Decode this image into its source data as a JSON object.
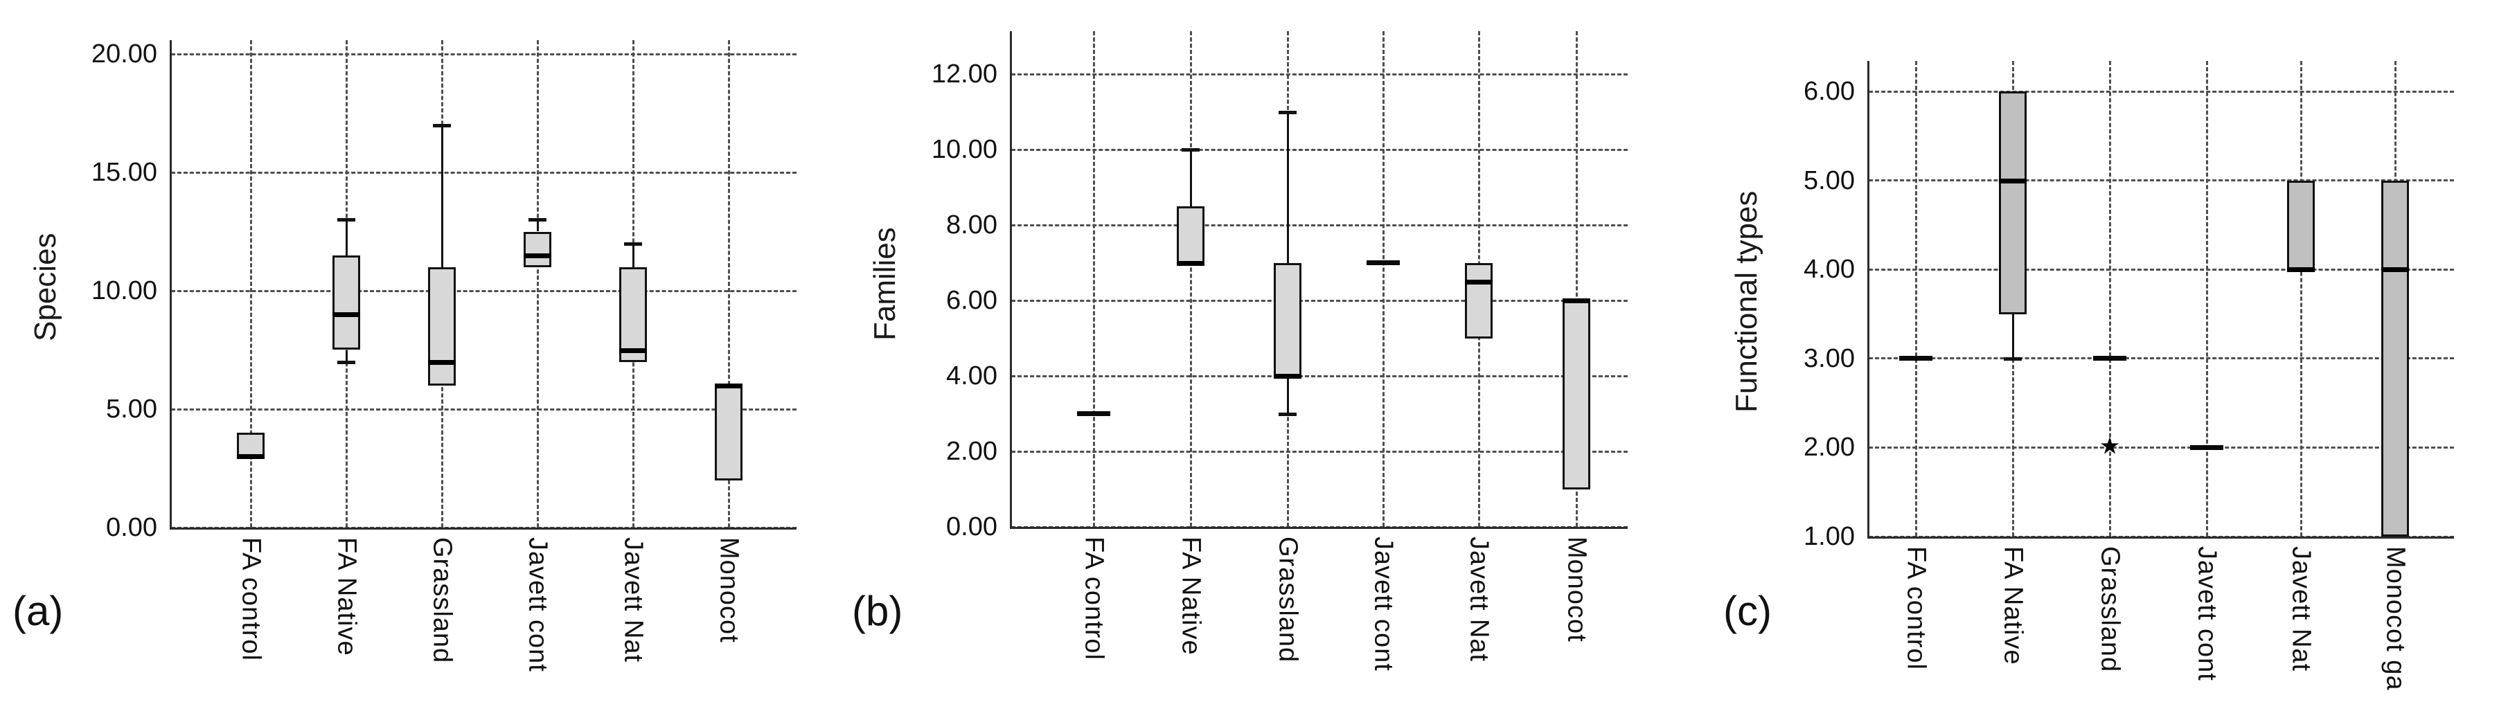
{
  "figure": {
    "background": "#ffffff",
    "colors": {
      "box_border": "#121212",
      "median": "#000000",
      "gridline": "#4f4f4f",
      "axis": "#2b2b2b",
      "text": "#111111"
    }
  },
  "chart_data": [
    {
      "type": "boxplot",
      "panel_id": "a",
      "panel_label": "(a)",
      "ylabel": "Species",
      "ylim": [
        0,
        20
      ],
      "yticks": [
        0,
        5,
        10,
        15,
        20
      ],
      "ytick_labels": [
        "0.00",
        "5.00",
        "10.00",
        "15.00",
        "20.00"
      ],
      "grid": "dashed",
      "legend": "none",
      "box_fill": "#d8d8d8",
      "categories": [
        "FA control",
        "FA Native",
        "Grassland",
        "Javett cont",
        "Javett Nat",
        "Monocot"
      ],
      "boxes": [
        {
          "category": "FA control",
          "q1": 3,
          "median": 3,
          "q3": 4,
          "whisker_low": null,
          "whisker_high": null,
          "outliers": []
        },
        {
          "category": "FA Native",
          "q1": 7.5,
          "median": 9,
          "q3": 11.5,
          "whisker_low": 7,
          "whisker_high": 13,
          "outliers": []
        },
        {
          "category": "Grassland",
          "q1": 6,
          "median": 7,
          "q3": 11,
          "whisker_low": null,
          "whisker_high": 17,
          "outliers": []
        },
        {
          "category": "Javett cont",
          "q1": 11,
          "median": 11.5,
          "q3": 12.5,
          "whisker_low": null,
          "whisker_high": 13,
          "outliers": []
        },
        {
          "category": "Javett Nat",
          "q1": 7,
          "median": 7.5,
          "q3": 11,
          "whisker_low": null,
          "whisker_high": 12,
          "outliers": []
        },
        {
          "category": "Monocot",
          "q1": 2,
          "median": 6,
          "q3": 6,
          "whisker_low": null,
          "whisker_high": null,
          "outliers": []
        }
      ]
    },
    {
      "type": "boxplot",
      "panel_id": "b",
      "panel_label": "(b)",
      "ylabel": "Families",
      "ylim": [
        0,
        12
      ],
      "yticks": [
        0,
        2,
        4,
        6,
        8,
        10,
        12
      ],
      "ytick_labels": [
        "0.00",
        "2.00",
        "4.00",
        "6.00",
        "8.00",
        "10.00",
        "12.00"
      ],
      "grid": "dashed",
      "legend": "none",
      "box_fill": "#d8d8d8",
      "categories": [
        "FA control",
        "FA Native",
        "Grassland",
        "Javett cont",
        "Javett Nat",
        "Monocot"
      ],
      "boxes": [
        {
          "category": "FA control",
          "q1": null,
          "median": 3,
          "q3": null,
          "whisker_low": null,
          "whisker_high": null,
          "outliers": []
        },
        {
          "category": "FA Native",
          "q1": 7,
          "median": 7,
          "q3": 8.5,
          "whisker_low": null,
          "whisker_high": 10,
          "outliers": []
        },
        {
          "category": "Grassland",
          "q1": 4,
          "median": 4,
          "q3": 7,
          "whisker_low": 3,
          "whisker_high": 11,
          "outliers": []
        },
        {
          "category": "Javett cont",
          "q1": null,
          "median": 7,
          "q3": null,
          "whisker_low": null,
          "whisker_high": null,
          "outliers": []
        },
        {
          "category": "Javett Nat",
          "q1": 5,
          "median": 6.5,
          "q3": 7,
          "whisker_low": null,
          "whisker_high": null,
          "outliers": []
        },
        {
          "category": "Monocot",
          "q1": 1,
          "median": 6,
          "q3": 6,
          "whisker_low": null,
          "whisker_high": null,
          "outliers": []
        }
      ]
    },
    {
      "type": "boxplot",
      "panel_id": "c",
      "panel_label": "(c)",
      "ylabel": "Functional types",
      "ylim": [
        1,
        6
      ],
      "yticks": [
        1,
        2,
        3,
        4,
        5,
        6
      ],
      "ytick_labels": [
        "1.00",
        "2.00",
        "3.00",
        "4.00",
        "5.00",
        "6.00"
      ],
      "grid": "dashed",
      "legend": "none",
      "box_fill": "#c0c0c0",
      "outlier_marker": "★",
      "categories": [
        "FA control",
        "FA Native",
        "Grassland",
        "Javett cont",
        "Javett Nat",
        "Monocot ga"
      ],
      "boxes": [
        {
          "category": "FA control",
          "q1": null,
          "median": 3,
          "q3": null,
          "whisker_low": null,
          "whisker_high": null,
          "outliers": []
        },
        {
          "category": "FA Native",
          "q1": 3.5,
          "median": 5,
          "q3": 6,
          "whisker_low": 3,
          "whisker_high": null,
          "outliers": []
        },
        {
          "category": "Grassland",
          "q1": null,
          "median": 3,
          "q3": null,
          "whisker_low": null,
          "whisker_high": null,
          "outliers": [
            2
          ]
        },
        {
          "category": "Javett cont",
          "q1": null,
          "median": 2,
          "q3": null,
          "whisker_low": null,
          "whisker_high": null,
          "outliers": []
        },
        {
          "category": "Javett Nat",
          "q1": 4,
          "median": 4,
          "q3": 5,
          "whisker_low": null,
          "whisker_high": null,
          "outliers": []
        },
        {
          "category": "Monocot ga",
          "q1": 1,
          "median": 4,
          "q3": 5,
          "whisker_low": null,
          "whisker_high": null,
          "outliers": []
        }
      ]
    }
  ]
}
